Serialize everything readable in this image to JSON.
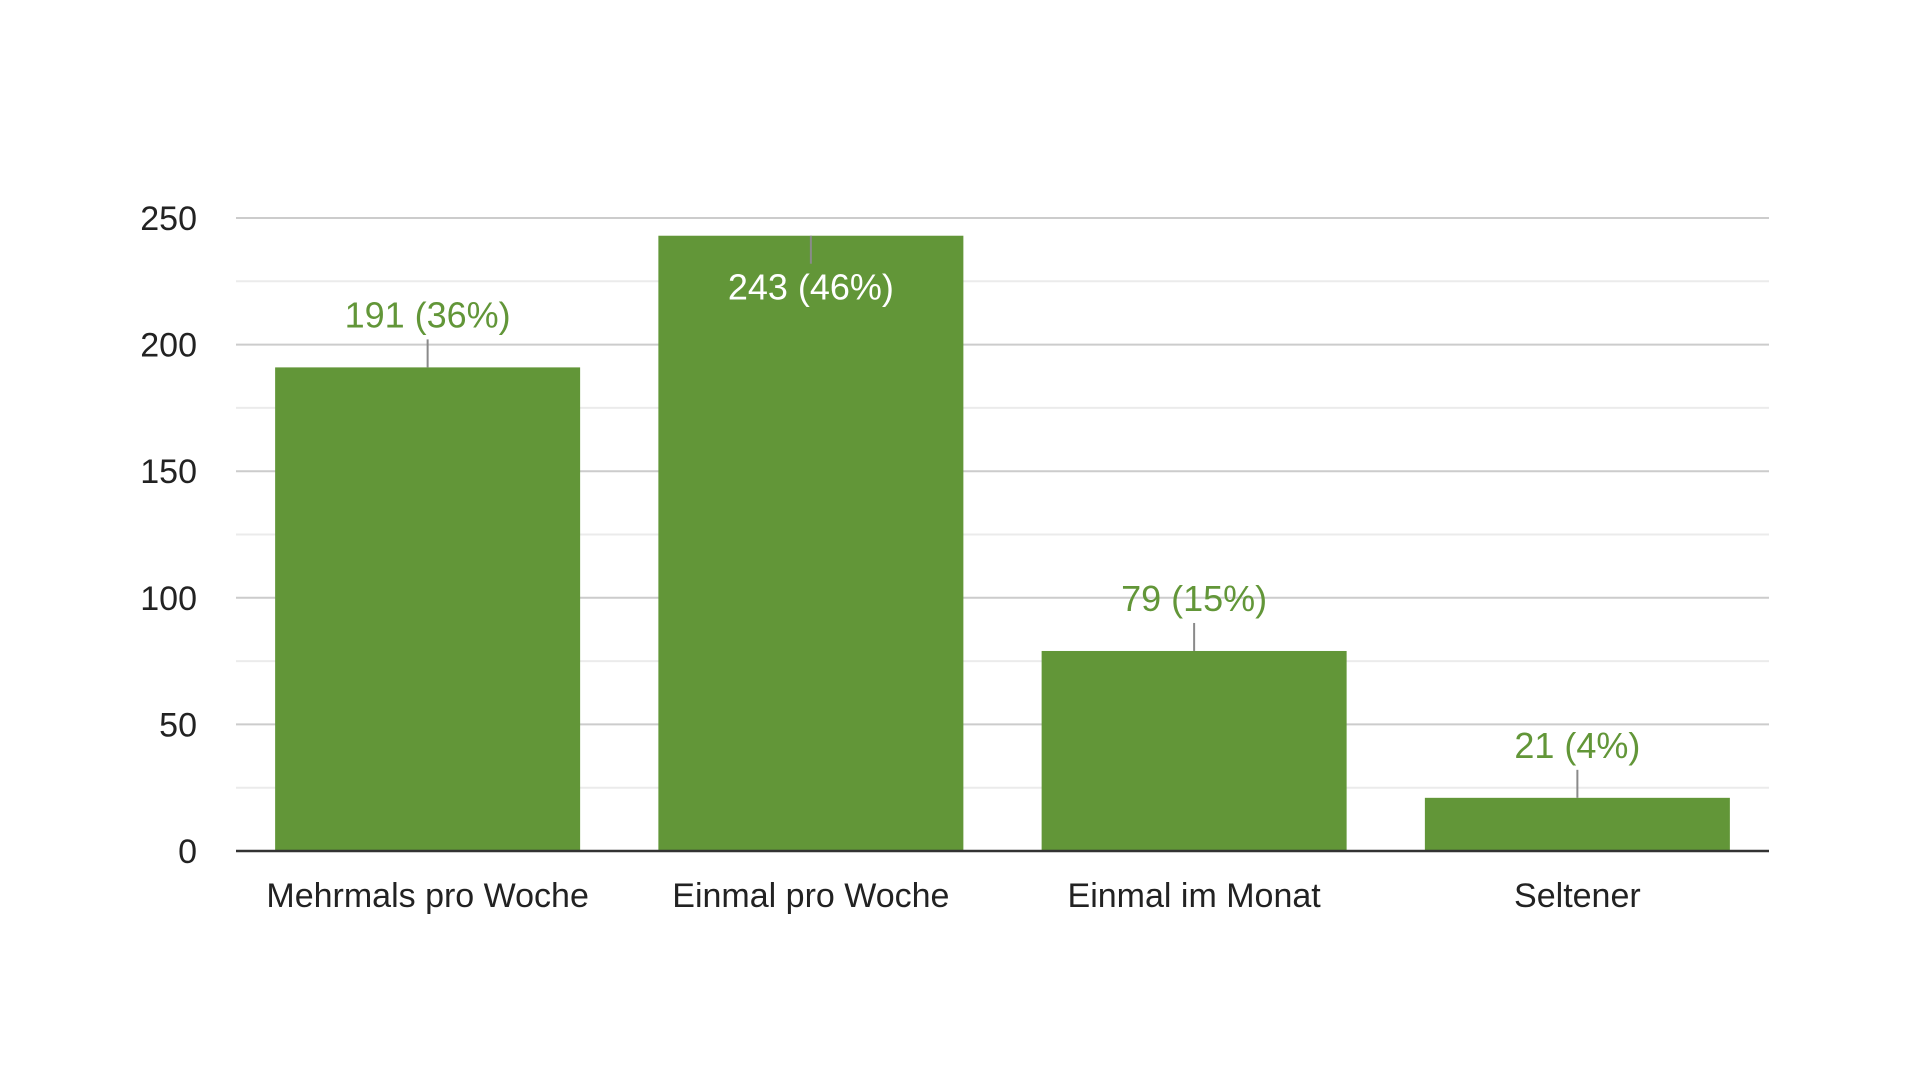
{
  "chart_data": {
    "type": "bar",
    "categories": [
      "Mehrmals pro Woche",
      "Einmal pro Woche",
      "Einmal im Monat",
      "Seltener"
    ],
    "values": [
      191,
      243,
      79,
      21
    ],
    "data_labels": [
      "191 (36%)",
      "243 (46%)",
      "79 (15%)",
      "21 (4%)"
    ],
    "ylim": [
      0,
      250
    ],
    "yticks": [
      0,
      50,
      100,
      150,
      200,
      250
    ],
    "ytick_labels": [
      "0",
      "50",
      "100",
      "150",
      "200",
      "250"
    ],
    "minor_gridlines": true,
    "grid": true,
    "legend": "none",
    "colors": {
      "bar": "#629638",
      "label": "#629638",
      "inside_label_fill": "#ffffff",
      "gridline": "#cccccc",
      "minor_gridline": "#ebebeb",
      "axis": "#333333",
      "tick_text": "#222222"
    }
  }
}
